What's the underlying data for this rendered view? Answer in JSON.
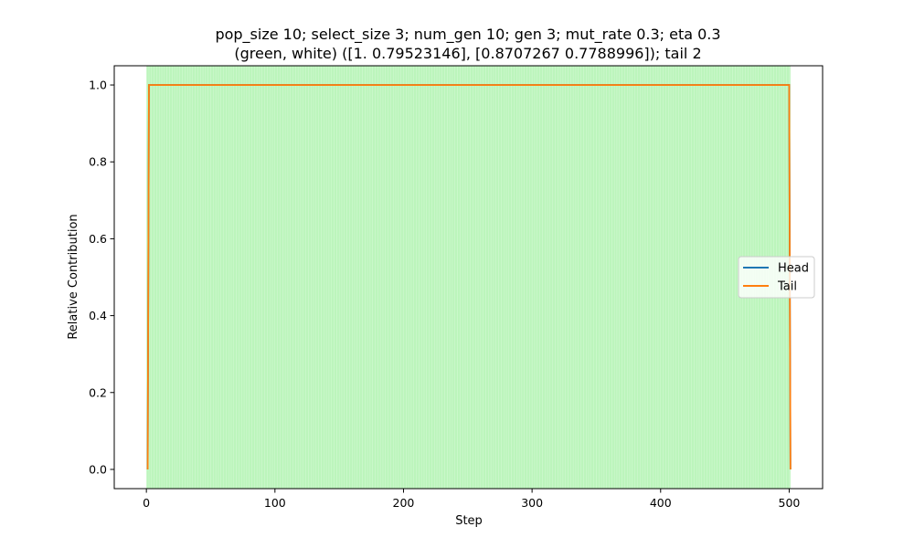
{
  "chart_data": {
    "type": "line",
    "title_lines": [
      "pop_size 10; select_size 3; num_gen 10; gen 3; mut_rate 0.3; eta 0.3",
      "(green, white) ([1.         0.79523146], [0.8707267 0.7788996]); tail 2"
    ],
    "xlabel": "Step",
    "ylabel": "Relative Contribution",
    "xlim": [
      -25,
      526
    ],
    "ylim": [
      -0.05,
      1.05
    ],
    "xticks": [
      0,
      100,
      200,
      300,
      400,
      500
    ],
    "yticks": [
      0.0,
      0.2,
      0.4,
      0.6,
      0.8,
      1.0
    ],
    "ytick_labels": [
      "0.0",
      "0.2",
      "0.4",
      "0.6",
      "0.8",
      "1.0"
    ],
    "grid": false,
    "legend_position": "center-right",
    "background_band": {
      "x_start": 0,
      "x_end": 501,
      "color": "#90ee90",
      "stripe_step": 1
    },
    "series": [
      {
        "name": "Head",
        "color": "#1f77b4",
        "x": [
          1,
          2,
          500,
          501
        ],
        "y": [
          0,
          1,
          1,
          0
        ]
      },
      {
        "name": "Tail",
        "color": "#ff7f0e",
        "x": [
          1,
          2,
          500,
          501
        ],
        "y": [
          0,
          1,
          1,
          0
        ]
      }
    ]
  }
}
